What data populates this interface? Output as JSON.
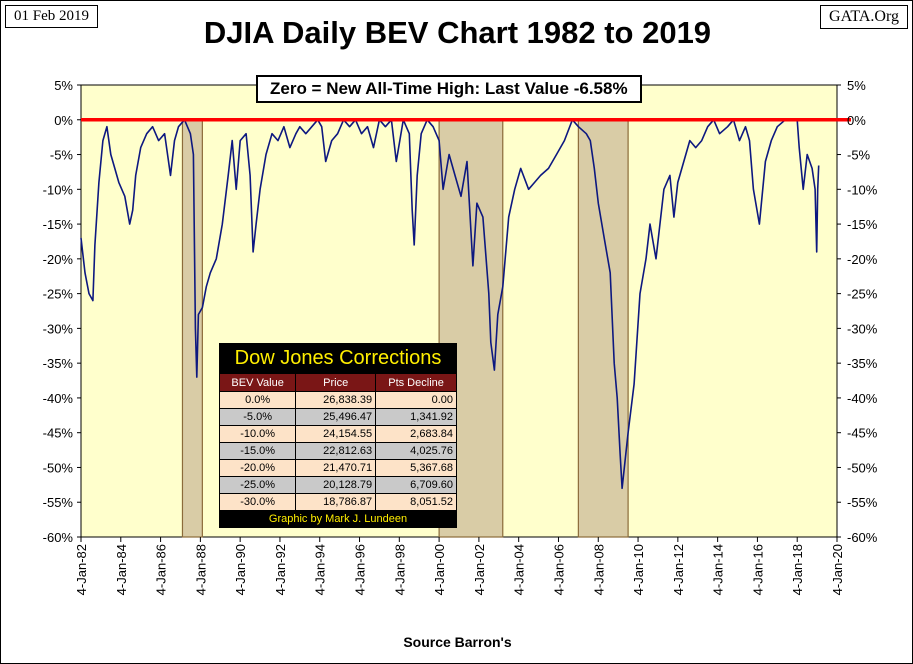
{
  "header": {
    "date": "01 Feb 2019",
    "site": "GATA.Org",
    "title": "DJIA Daily BEV Chart 1982 to 2019",
    "source": "Source Barron's"
  },
  "annotation": "Zero = New All-Time High: Last Value  -6.58%",
  "colors": {
    "plot_bg": "#ffffcc",
    "series": "#0d1880",
    "zero_line": "#ff0000",
    "shade_fill": "#d9cca6",
    "shade_stroke": "#8b6b3a"
  },
  "corrections_table": {
    "title": "Dow Jones Corrections",
    "headers": [
      "BEV Value",
      "Price",
      "Pts Decline"
    ],
    "rows": [
      [
        "0.0%",
        "26,838.39",
        "0.00"
      ],
      [
        "-5.0%",
        "25,496.47",
        "1,341.92"
      ],
      [
        "-10.0%",
        "24,154.55",
        "2,683.84"
      ],
      [
        "-15.0%",
        "22,812.63",
        "4,025.76"
      ],
      [
        "-20.0%",
        "21,470.71",
        "5,367.68"
      ],
      [
        "-25.0%",
        "20,128.79",
        "6,709.60"
      ],
      [
        "-30.0%",
        "18,786.87",
        "8,051.52"
      ]
    ],
    "credit": "Graphic by Mark J. Lundeen"
  },
  "chart_data": {
    "type": "line",
    "title": "DJIA Daily BEV Chart 1982 to 2019",
    "xlabel": "Source Barron's",
    "ylabel": "",
    "x_unit": "year",
    "xlim": [
      1982.0,
      2020.0
    ],
    "ylim": [
      -60,
      5
    ],
    "y_ticks": [
      5,
      0,
      -5,
      -10,
      -15,
      -20,
      -25,
      -30,
      -35,
      -40,
      -45,
      -50,
      -55,
      -60
    ],
    "y_tick_labels": [
      "5%",
      "0%",
      "-5%",
      "-10%",
      "-15%",
      "-20%",
      "-25%",
      "-30%",
      "-35%",
      "-40%",
      "-45%",
      "-50%",
      "-55%",
      "-60%"
    ],
    "x_ticks": [
      1982,
      1984,
      1986,
      1988,
      1990,
      1992,
      1994,
      1996,
      1998,
      2000,
      2002,
      2004,
      2006,
      2008,
      2010,
      2012,
      2014,
      2016,
      2018,
      2020
    ],
    "x_tick_labels": [
      "4-Jan-82",
      "4-Jan-84",
      "4-Jan-86",
      "4-Jan-88",
      "4-Jan-90",
      "4-Jan-92",
      "4-Jan-94",
      "4-Jan-96",
      "4-Jan-98",
      "4-Jan-00",
      "4-Jan-02",
      "4-Jan-04",
      "4-Jan-06",
      "4-Jan-08",
      "4-Jan-10",
      "4-Jan-12",
      "4-Jan-14",
      "4-Jan-16",
      "4-Jan-18",
      "4-Jan-20"
    ],
    "zero_line": 0,
    "shaded_periods": [
      {
        "start": 1987.1,
        "end": 1988.1
      },
      {
        "start": 2000.0,
        "end": 2003.2
      },
      {
        "start": 2007.0,
        "end": 2009.5
      }
    ],
    "series": [
      {
        "name": "DJIA BEV",
        "x": [
          1982.0,
          1982.2,
          1982.4,
          1982.6,
          1982.7,
          1982.9,
          1983.1,
          1983.3,
          1983.5,
          1983.7,
          1983.9,
          1984.2,
          1984.45,
          1984.6,
          1984.75,
          1985.0,
          1985.3,
          1985.6,
          1985.9,
          1986.2,
          1986.5,
          1986.7,
          1986.9,
          1987.2,
          1987.5,
          1987.65,
          1987.75,
          1987.82,
          1987.9,
          1988.1,
          1988.3,
          1988.5,
          1988.8,
          1989.1,
          1989.4,
          1989.6,
          1989.8,
          1990.0,
          1990.3,
          1990.5,
          1990.65,
          1990.8,
          1991.0,
          1991.3,
          1991.6,
          1991.9,
          1992.2,
          1992.5,
          1992.8,
          1993.0,
          1993.3,
          1993.6,
          1993.9,
          1994.1,
          1994.3,
          1994.6,
          1994.9,
          1995.2,
          1995.5,
          1995.8,
          1996.1,
          1996.4,
          1996.7,
          1997.0,
          1997.3,
          1997.6,
          1997.85,
          1998.2,
          1998.5,
          1998.65,
          1998.75,
          1998.9,
          1999.1,
          1999.4,
          1999.7,
          2000.0,
          2000.2,
          2000.5,
          2000.8,
          2001.1,
          2001.4,
          2001.7,
          2001.9,
          2002.2,
          2002.5,
          2002.6,
          2002.78,
          2002.95,
          2003.2,
          2003.5,
          2003.8,
          2004.1,
          2004.5,
          2004.8,
          2005.1,
          2005.5,
          2005.9,
          2006.3,
          2006.7,
          2007.0,
          2007.4,
          2007.6,
          2007.8,
          2008.0,
          2008.3,
          2008.6,
          2008.8,
          2008.95,
          2009.1,
          2009.2,
          2009.5,
          2009.8,
          2010.1,
          2010.4,
          2010.6,
          2010.9,
          2011.3,
          2011.6,
          2011.8,
          2012.0,
          2012.3,
          2012.6,
          2012.9,
          2013.2,
          2013.5,
          2013.8,
          2014.1,
          2014.5,
          2014.8,
          2015.1,
          2015.4,
          2015.6,
          2015.8,
          2016.1,
          2016.4,
          2016.7,
          2017.0,
          2017.4,
          2017.8,
          2018.0,
          2018.1,
          2018.3,
          2018.5,
          2018.75,
          2018.9,
          2018.98,
          2019.03,
          2019.08
        ],
        "values": [
          -17,
          -22,
          -25,
          -26,
          -18,
          -9,
          -3,
          -1,
          -5,
          -7,
          -9,
          -11,
          -15,
          -13,
          -8,
          -4,
          -2,
          -1,
          -3,
          -2,
          -8,
          -3,
          -1,
          0,
          -2,
          -5,
          -30,
          -37,
          -28,
          -27,
          -24,
          -22,
          -20,
          -15,
          -8,
          -3,
          -10,
          -3,
          -2,
          -8,
          -19,
          -15,
          -10,
          -5,
          -2,
          -3,
          -1,
          -4,
          -2,
          -1,
          -2,
          -1,
          0,
          -1,
          -6,
          -3,
          -2,
          0,
          -1,
          0,
          -2,
          -1,
          -4,
          0,
          -1,
          0,
          -6,
          0,
          -2,
          -13,
          -18,
          -8,
          -2,
          0,
          -1,
          -3,
          -10,
          -5,
          -8,
          -11,
          -6,
          -21,
          -12,
          -14,
          -25,
          -32,
          -36,
          -28,
          -24,
          -14,
          -10,
          -7,
          -10,
          -9,
          -8,
          -7,
          -5,
          -3,
          0,
          -1,
          -2,
          -3,
          -7,
          -12,
          -17,
          -22,
          -35,
          -40,
          -48,
          -53,
          -45,
          -38,
          -25,
          -20,
          -15,
          -20,
          -10,
          -8,
          -14,
          -9,
          -6,
          -3,
          -4,
          -3,
          -1,
          0,
          -2,
          -1,
          0,
          -3,
          -1,
          -3,
          -10,
          -15,
          -6,
          -3,
          -1,
          0,
          0,
          0,
          -4,
          -10,
          -5,
          -7,
          -10,
          -19,
          -10,
          -6.58
        ]
      }
    ]
  }
}
